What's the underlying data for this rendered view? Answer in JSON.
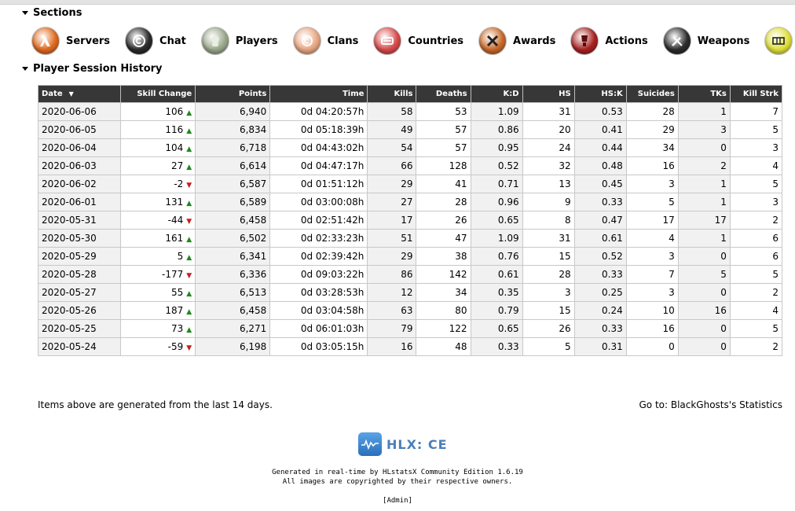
{
  "sections_heading": "Sections",
  "nav": [
    {
      "label": "Servers",
      "icon": "half-life-lambda-icon",
      "color": "#e06a1f"
    },
    {
      "label": "Chat",
      "icon": "chat-icon",
      "color": "#2a2a2a"
    },
    {
      "label": "Players",
      "icon": "player-head-icon",
      "color": "#9aa88c"
    },
    {
      "label": "Clans",
      "icon": "clans-icon",
      "color": "#e9a783"
    },
    {
      "label": "Countries",
      "icon": "countries-icon",
      "color": "#d84a4a"
    },
    {
      "label": "Awards",
      "icon": "awards-icon",
      "color": "#c86a2a"
    },
    {
      "label": "Actions",
      "icon": "actions-icon",
      "color": "#a82222"
    },
    {
      "label": "Weapons",
      "icon": "weapons-icon",
      "color": "#2c2c2c"
    },
    {
      "label": "Maps",
      "icon": "maps-icon",
      "color": "#dfe03a"
    }
  ],
  "history_heading": "Player Session History",
  "table": {
    "sort_indicator": "▼",
    "headers": [
      "Date",
      "Skill Change",
      "Points",
      "Time",
      "Kills",
      "Deaths",
      "K:D",
      "HS",
      "HS:K",
      "Suicides",
      "TKs",
      "Kill Strk"
    ],
    "rows": [
      {
        "date": "2020-06-06",
        "skill": "106",
        "dir": "up",
        "points": "6,940",
        "time": "0d 04:20:57h",
        "kills": "58",
        "deaths": "53",
        "kd": "1.09",
        "hs": "31",
        "hsk": "0.53",
        "suicides": "28",
        "tks": "1",
        "streak": "7"
      },
      {
        "date": "2020-06-05",
        "skill": "116",
        "dir": "up",
        "points": "6,834",
        "time": "0d 05:18:39h",
        "kills": "49",
        "deaths": "57",
        "kd": "0.86",
        "hs": "20",
        "hsk": "0.41",
        "suicides": "29",
        "tks": "3",
        "streak": "5"
      },
      {
        "date": "2020-06-04",
        "skill": "104",
        "dir": "up",
        "points": "6,718",
        "time": "0d 04:43:02h",
        "kills": "54",
        "deaths": "57",
        "kd": "0.95",
        "hs": "24",
        "hsk": "0.44",
        "suicides": "34",
        "tks": "0",
        "streak": "3"
      },
      {
        "date": "2020-06-03",
        "skill": "27",
        "dir": "up",
        "points": "6,614",
        "time": "0d 04:47:17h",
        "kills": "66",
        "deaths": "128",
        "kd": "0.52",
        "hs": "32",
        "hsk": "0.48",
        "suicides": "16",
        "tks": "2",
        "streak": "4"
      },
      {
        "date": "2020-06-02",
        "skill": "-2",
        "dir": "down",
        "points": "6,587",
        "time": "0d 01:51:12h",
        "kills": "29",
        "deaths": "41",
        "kd": "0.71",
        "hs": "13",
        "hsk": "0.45",
        "suicides": "3",
        "tks": "1",
        "streak": "5"
      },
      {
        "date": "2020-06-01",
        "skill": "131",
        "dir": "up",
        "points": "6,589",
        "time": "0d 03:00:08h",
        "kills": "27",
        "deaths": "28",
        "kd": "0.96",
        "hs": "9",
        "hsk": "0.33",
        "suicides": "5",
        "tks": "1",
        "streak": "3"
      },
      {
        "date": "2020-05-31",
        "skill": "-44",
        "dir": "down",
        "points": "6,458",
        "time": "0d 02:51:42h",
        "kills": "17",
        "deaths": "26",
        "kd": "0.65",
        "hs": "8",
        "hsk": "0.47",
        "suicides": "17",
        "tks": "17",
        "streak": "2"
      },
      {
        "date": "2020-05-30",
        "skill": "161",
        "dir": "up",
        "points": "6,502",
        "time": "0d 02:33:23h",
        "kills": "51",
        "deaths": "47",
        "kd": "1.09",
        "hs": "31",
        "hsk": "0.61",
        "suicides": "4",
        "tks": "1",
        "streak": "6"
      },
      {
        "date": "2020-05-29",
        "skill": "5",
        "dir": "up",
        "points": "6,341",
        "time": "0d 02:39:42h",
        "kills": "29",
        "deaths": "38",
        "kd": "0.76",
        "hs": "15",
        "hsk": "0.52",
        "suicides": "3",
        "tks": "0",
        "streak": "6"
      },
      {
        "date": "2020-05-28",
        "skill": "-177",
        "dir": "down",
        "points": "6,336",
        "time": "0d 09:03:22h",
        "kills": "86",
        "deaths": "142",
        "kd": "0.61",
        "hs": "28",
        "hsk": "0.33",
        "suicides": "7",
        "tks": "5",
        "streak": "5"
      },
      {
        "date": "2020-05-27",
        "skill": "55",
        "dir": "up",
        "points": "6,513",
        "time": "0d 03:28:53h",
        "kills": "12",
        "deaths": "34",
        "kd": "0.35",
        "hs": "3",
        "hsk": "0.25",
        "suicides": "3",
        "tks": "0",
        "streak": "2"
      },
      {
        "date": "2020-05-26",
        "skill": "187",
        "dir": "up",
        "points": "6,458",
        "time": "0d 03:04:58h",
        "kills": "63",
        "deaths": "80",
        "kd": "0.79",
        "hs": "15",
        "hsk": "0.24",
        "suicides": "10",
        "tks": "16",
        "streak": "4"
      },
      {
        "date": "2020-05-25",
        "skill": "73",
        "dir": "up",
        "points": "6,271",
        "time": "0d 06:01:03h",
        "kills": "79",
        "deaths": "122",
        "kd": "0.65",
        "hs": "26",
        "hsk": "0.33",
        "suicides": "16",
        "tks": "0",
        "streak": "5"
      },
      {
        "date": "2020-05-24",
        "skill": "-59",
        "dir": "down",
        "points": "6,198",
        "time": "0d 03:05:15h",
        "kills": "16",
        "deaths": "48",
        "kd": "0.33",
        "hs": "5",
        "hsk": "0.31",
        "suicides": "0",
        "tks": "0",
        "streak": "2"
      }
    ]
  },
  "footer": {
    "note": "Items above are generated from the last 14 days.",
    "goto": "Go to: BlackGhosts's Statistics",
    "logo_text": "HLX: CE",
    "generated": "Generated in real-time by HLstatsX Community Edition 1.6.19",
    "copyright": "All images are copyrighted by their respective owners.",
    "admin": "[Admin]"
  },
  "colors": {
    "header_bg": "#373737",
    "arrow_up": "#1a8a1a",
    "arrow_down": "#c81e1e",
    "shaded_cell": "#f1f1f1"
  }
}
